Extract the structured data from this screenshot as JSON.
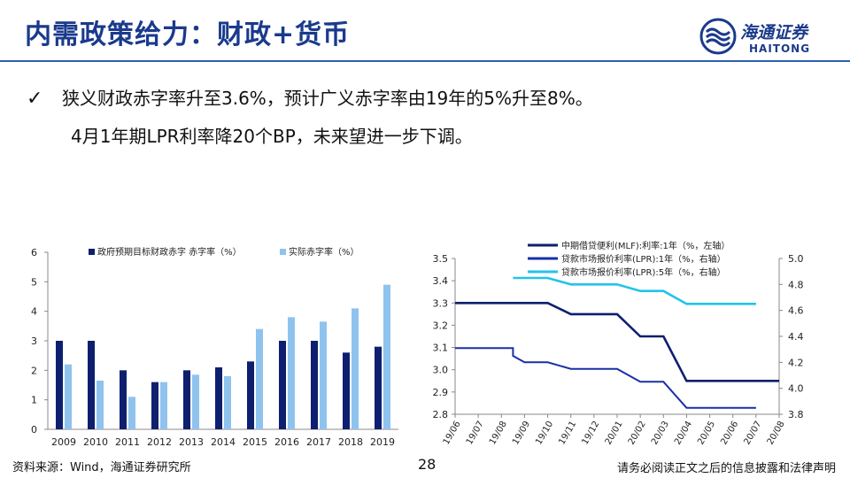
{
  "header": {
    "title": "内需政策给力：财政+货币",
    "logo_cn": "海通证券",
    "logo_en": "HAITONG"
  },
  "bullet": {
    "check": "✓",
    "line1": "狭义财政赤字率升至3.6%，预计广义赤字率由19年的5%升至8%。",
    "line2": "4月1年期LPR利率降20个BP，未来望进一步下调。"
  },
  "colors": {
    "navy": "#0d1f6e",
    "light_blue": "#8fc3ee",
    "blue": "#1a2fa8",
    "cyan": "#22c3ea",
    "accent": "#1a3a8c"
  },
  "chart_data": [
    {
      "type": "bar",
      "title": "",
      "categories": [
        "2009",
        "2010",
        "2011",
        "2012",
        "2013",
        "2014",
        "2015",
        "2016",
        "2017",
        "2018",
        "2019"
      ],
      "series": [
        {
          "name": "政府预期目标财政赤字 赤字率（%）",
          "values": [
            3.0,
            3.0,
            2.0,
            1.6,
            2.0,
            2.1,
            2.3,
            3.0,
            3.0,
            2.6,
            2.8
          ]
        },
        {
          "name": "实际赤字率（%）",
          "values": [
            2.2,
            1.65,
            1.1,
            1.6,
            1.85,
            1.8,
            3.4,
            3.8,
            3.65,
            4.1,
            4.9
          ]
        }
      ],
      "ylim": [
        0,
        6
      ],
      "yticks": [
        "0",
        "1",
        "2",
        "3",
        "4",
        "5",
        "6"
      ],
      "xlabel": "",
      "ylabel": "",
      "legend": "top"
    },
    {
      "type": "line",
      "categories": [
        "19/06",
        "19/07",
        "19/08",
        "19/09",
        "19/10",
        "19/11",
        "19/12",
        "20/01",
        "20/02",
        "20/03",
        "20/04",
        "20/05",
        "20/06",
        "20/07",
        "20/08"
      ],
      "series": [
        {
          "name": "中期借贷便利(MLF):利率:1年（%，左轴）",
          "axis": "left",
          "points": [
            [
              0,
              3.3
            ],
            [
              4,
              3.3
            ],
            [
              5,
              3.25
            ],
            [
              7,
              3.25
            ],
            [
              8,
              3.15
            ],
            [
              9,
              3.15
            ],
            [
              10,
              2.95
            ],
            [
              14,
              2.95
            ]
          ]
        },
        {
          "name": "贷款市场报价利率(LPR):1年（%，右轴）",
          "axis": "right",
          "points": [
            [
              0,
              4.31
            ],
            [
              2.5,
              4.31
            ],
            [
              2.5,
              4.25
            ],
            [
              3,
              4.2
            ],
            [
              4,
              4.2
            ],
            [
              5,
              4.15
            ],
            [
              7,
              4.15
            ],
            [
              8,
              4.05
            ],
            [
              9,
              4.05
            ],
            [
              10,
              3.85
            ],
            [
              13,
              3.85
            ]
          ]
        },
        {
          "name": "贷款市场报价利率(LPR):5年（%，右轴）",
          "axis": "right",
          "points": [
            [
              2.5,
              4.85
            ],
            [
              4,
              4.85
            ],
            [
              5,
              4.8
            ],
            [
              7,
              4.8
            ],
            [
              8,
              4.75
            ],
            [
              9,
              4.75
            ],
            [
              10,
              4.65
            ],
            [
              13,
              4.65
            ]
          ]
        }
      ],
      "ylim_left": [
        2.8,
        3.5
      ],
      "ylim_right": [
        3.8,
        5.0
      ],
      "yticks_left": [
        "2.8",
        "2.9",
        "3.0",
        "3.1",
        "3.2",
        "3.3",
        "3.4",
        "3.5"
      ],
      "yticks_right": [
        "3.8",
        "4.0",
        "4.2",
        "4.4",
        "4.6",
        "4.8",
        "5.0"
      ],
      "legend": "top"
    }
  ],
  "footer": {
    "source": "资料来源：Wind，海通证券研究所",
    "page": "28",
    "disclaimer": "请务必阅读正文之后的信息披露和法律声明"
  }
}
